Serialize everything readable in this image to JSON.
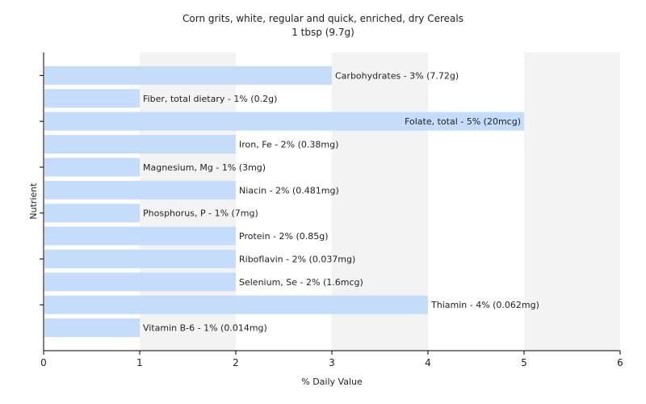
{
  "chart_data": {
    "type": "bar",
    "orientation": "horizontal",
    "title": "Corn grits, white, regular and quick, enriched, dry Cereals",
    "subtitle": "1 tbsp (9.7g)",
    "xlabel": "% Daily Value",
    "ylabel": "Nutrient",
    "xlim": [
      0,
      6
    ],
    "xticks": [
      "0",
      "1",
      "2",
      "3",
      "4",
      "5",
      "6"
    ],
    "grid": "vertical bands",
    "legend": "none",
    "bar_color": "#c5dcfa",
    "categories": [
      "Carbohydrates",
      "Fiber, total dietary",
      "Folate, total",
      "Iron, Fe",
      "Magnesium, Mg",
      "Niacin",
      "Phosphorus, P",
      "Protein",
      "Riboflavin",
      "Selenium, Se",
      "Thiamin",
      "Vitamin B-6"
    ],
    "values": [
      3,
      1,
      5,
      2,
      1,
      2,
      1,
      2,
      2,
      2,
      4,
      1
    ],
    "labels": [
      "Carbohydrates - 3% (7.72g)",
      "Fiber, total dietary - 1% (0.2g)",
      "Folate, total - 5% (20mcg)",
      "Iron, Fe - 2% (0.38mg)",
      "Magnesium, Mg - 1% (3mg)",
      "Niacin - 2% (0.481mg)",
      "Phosphorus, P - 1% (7mg)",
      "Protein - 2% (0.85g)",
      "Riboflavin - 2% (0.037mg)",
      "Selenium, Se - 2% (1.6mcg)",
      "Thiamin - 4% (0.062mg)",
      "Vitamin B-6 - 1% (0.014mg)"
    ]
  }
}
